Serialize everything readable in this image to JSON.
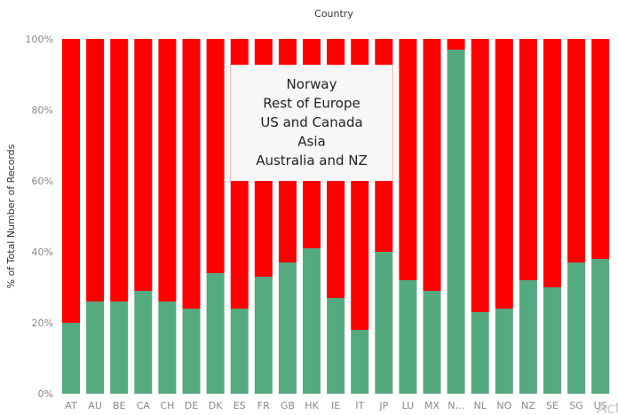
{
  "chart_data": {
    "type": "bar",
    "title": "Country",
    "xlabel": "",
    "ylabel": "% of Total Number of Records",
    "ylim": [
      0,
      100
    ],
    "y_ticks": [
      "0%",
      "20%",
      "40%",
      "60%",
      "80%",
      "100%"
    ],
    "stacked": true,
    "categories": [
      "AT",
      "AU",
      "BE",
      "CA",
      "CH",
      "DE",
      "DK",
      "ES",
      "FR",
      "GB",
      "HK",
      "IE",
      "IT",
      "JP",
      "LU",
      "MX",
      "N,..",
      "NL",
      "NO",
      "NZ",
      "SE",
      "SG",
      "US"
    ],
    "series": [
      {
        "color": "#55a97f",
        "values": [
          20,
          26,
          26,
          29,
          26,
          24,
          34,
          24,
          33,
          37,
          41,
          27,
          18,
          40,
          32,
          29,
          97,
          23,
          24,
          32,
          30,
          37,
          38
        ]
      },
      {
        "color": "#ff0000",
        "values": [
          80,
          74,
          74,
          71,
          74,
          76,
          66,
          76,
          67,
          63,
          59,
          73,
          82,
          60,
          68,
          71,
          3,
          77,
          76,
          68,
          70,
          63,
          62
        ]
      }
    ],
    "overlay_list": [
      "Norway",
      "Rest of Europe",
      "US and Canada",
      "Asia",
      "Australia and NZ"
    ],
    "watermark": "Acti",
    "grid": false
  }
}
